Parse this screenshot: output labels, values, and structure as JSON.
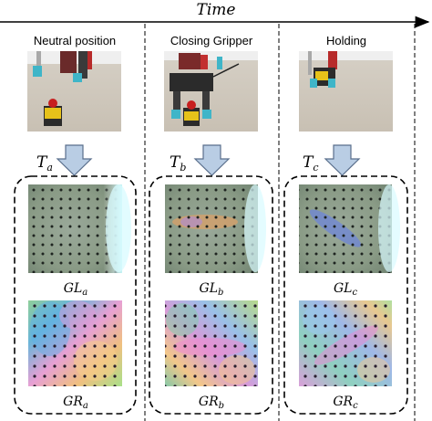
{
  "title": "Time",
  "columns": [
    {
      "id": "a",
      "stage": "Neutral position",
      "time": {
        "main": "T",
        "sub": "a"
      },
      "gl": {
        "main": "GL",
        "sub": "a"
      },
      "gr": {
        "main": "GR",
        "sub": "a"
      }
    },
    {
      "id": "b",
      "stage": "Closing Gripper",
      "time": {
        "main": "T",
        "sub": "b"
      },
      "gl": {
        "main": "GL",
        "sub": "b"
      },
      "gr": {
        "main": "GR",
        "sub": "b"
      }
    },
    {
      "id": "c",
      "stage": "Holding",
      "time": {
        "main": "T",
        "sub": "c"
      },
      "gl": {
        "main": "GL",
        "sub": "c"
      },
      "gr": {
        "main": "GR",
        "sub": "c"
      }
    }
  ],
  "colors": {
    "arrow_fill": "#b9cde4",
    "arrow_stroke": "#5a6f8c",
    "gel_base": "#8fa38a",
    "rg_tint": "#d6a36a"
  }
}
